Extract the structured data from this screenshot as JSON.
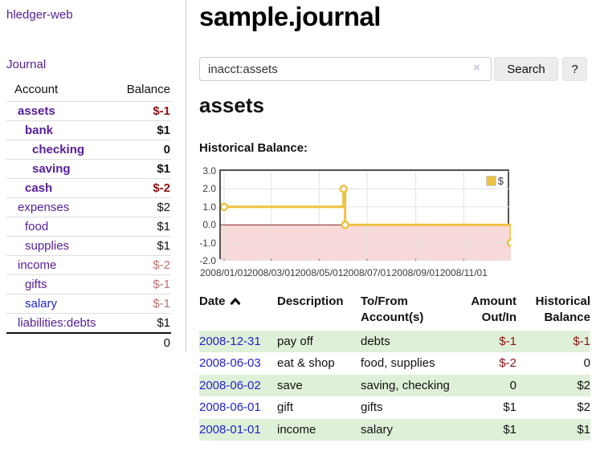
{
  "sidebar": {
    "brand": "hledger-web",
    "nav": [
      {
        "label": "Journal"
      }
    ],
    "table": {
      "headers": {
        "account": "Account",
        "balance": "Balance"
      },
      "rows": [
        {
          "name": "assets",
          "depth": 1,
          "bold": true,
          "link_color": "purple",
          "balance": "$-1",
          "balance_tone": "neg-strong"
        },
        {
          "name": "bank",
          "depth": 2,
          "bold": true,
          "link_color": "purple",
          "balance": "$1",
          "balance_tone": "pos"
        },
        {
          "name": "checking",
          "depth": 3,
          "bold": true,
          "link_color": "purple",
          "balance": "0",
          "balance_tone": "pos"
        },
        {
          "name": "saving",
          "depth": 3,
          "bold": true,
          "link_color": "purple",
          "balance": "$1",
          "balance_tone": "pos"
        },
        {
          "name": "cash",
          "depth": 2,
          "bold": true,
          "link_color": "purple",
          "balance": "$-2",
          "balance_tone": "neg-strong"
        },
        {
          "name": "expenses",
          "depth": 1,
          "bold": false,
          "link_color": "purple",
          "balance": "$2",
          "balance_tone": "pos"
        },
        {
          "name": "food",
          "depth": 2,
          "bold": false,
          "link_color": "purple",
          "balance": "$1",
          "balance_tone": "pos"
        },
        {
          "name": "supplies",
          "depth": 2,
          "bold": false,
          "link_color": "purple",
          "balance": "$1",
          "balance_tone": "pos"
        },
        {
          "name": "income",
          "depth": 1,
          "bold": false,
          "link_color": "purple",
          "balance": "$-2",
          "balance_tone": "neg-soft"
        },
        {
          "name": "gifts",
          "depth": 2,
          "bold": false,
          "link_color": "purple",
          "balance": "$-1",
          "balance_tone": "neg-soft"
        },
        {
          "name": "salary",
          "depth": 2,
          "bold": false,
          "link_color": "blue",
          "balance": "$-1",
          "balance_tone": "neg-soft"
        },
        {
          "name": "liabilities:debts",
          "depth": 1,
          "bold": false,
          "link_color": "purple",
          "balance": "$1",
          "balance_tone": "pos"
        }
      ],
      "total": "0"
    }
  },
  "main": {
    "title": "sample.journal",
    "search": {
      "value": "inacct:assets",
      "clear": "×",
      "search_button": "Search",
      "help_button": "?"
    },
    "account_heading": "assets",
    "chart_heading": "Historical Balance:"
  },
  "chart_data": {
    "type": "line",
    "step": true,
    "title": "Historical Balance of assets",
    "x_range": [
      "2008-01-01",
      "2008-12-31"
    ],
    "ylim": [
      -2.0,
      3.0
    ],
    "yticks": [
      "3.0",
      "2.0",
      "1.0",
      "0.0",
      "-1.0",
      "-2.0"
    ],
    "xticks": [
      "2008/01/01",
      "2008/03/01",
      "2008/05/01",
      "2008/07/01",
      "2008/09/01",
      "2008/11/01"
    ],
    "series": [
      {
        "name": "$",
        "color": "#edc240",
        "points": [
          {
            "x": "2008-01-01",
            "y": 1.0
          },
          {
            "x": "2008-06-01",
            "y": 2.0
          },
          {
            "x": "2008-06-03",
            "y": 0.0
          },
          {
            "x": "2008-12-31",
            "y": -1.0
          }
        ]
      }
    ],
    "grid_color": "#e3e3e3",
    "border_color": "#545454",
    "negative_region_color": "#f8d9d9",
    "zero_line_color": "#8b2020",
    "legend": {
      "label": "$",
      "position": "top-right",
      "swatch_color": "#edc240"
    }
  },
  "register": {
    "headers": [
      "Date",
      "Description",
      "To/From Account(s)",
      "Amount Out/In",
      "Historical Balance"
    ],
    "rows": [
      {
        "date": "2008-12-31",
        "description": "pay off",
        "accounts": "debts",
        "amount": "$-1",
        "amount_neg": true,
        "balance": "$-1",
        "balance_neg": true
      },
      {
        "date": "2008-06-03",
        "description": "eat & shop",
        "accounts": "food, supplies",
        "amount": "$-2",
        "amount_neg": true,
        "balance": "0",
        "balance_neg": false
      },
      {
        "date": "2008-06-02",
        "description": "save",
        "accounts": "saving, checking",
        "amount": "0",
        "amount_neg": false,
        "balance": "$2",
        "balance_neg": false
      },
      {
        "date": "2008-06-01",
        "description": "gift",
        "accounts": "gifts",
        "amount": "$1",
        "amount_neg": false,
        "balance": "$2",
        "balance_neg": false
      },
      {
        "date": "2008-01-01",
        "description": "income",
        "accounts": "salary",
        "amount": "$1",
        "amount_neg": false,
        "balance": "$1",
        "balance_neg": false
      }
    ]
  }
}
